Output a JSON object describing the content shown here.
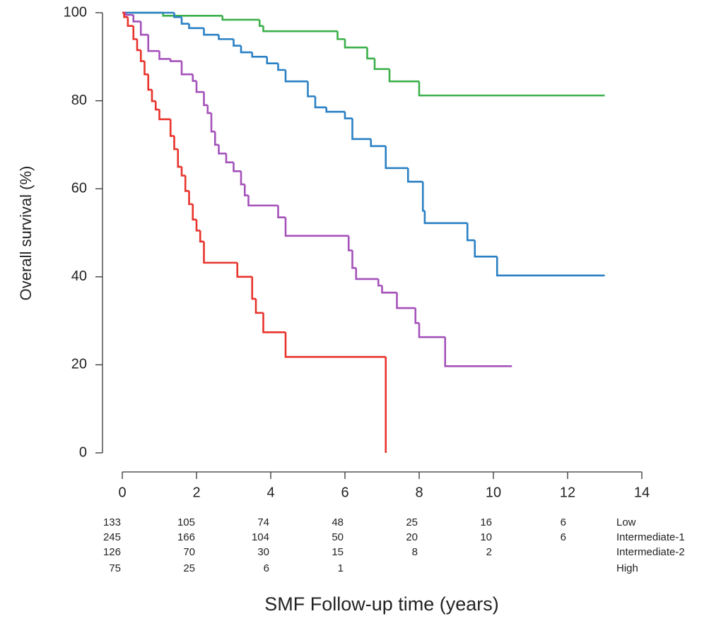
{
  "chart_data": {
    "type": "step",
    "y_label": "Overall survival (%)",
    "x_label": "SMF Follow-up time (years)",
    "xlim": [
      0,
      14
    ],
    "xticks": [
      0,
      2,
      4,
      6,
      8,
      10,
      12,
      14
    ],
    "ylim": [
      0,
      100
    ],
    "yticks": [
      0,
      20,
      40,
      60,
      80,
      100
    ],
    "series": [
      {
        "name": "Low",
        "color": "#3bb04a",
        "x": [
          0,
          1.1,
          2.7,
          3.7,
          3.8,
          5.8,
          6.0,
          6.6,
          6.8,
          7.2,
          8.0,
          13
        ],
        "values": [
          100,
          99.3,
          98.4,
          97,
          95.8,
          94,
          92.1,
          89.6,
          87.2,
          84.4,
          81.2,
          81.2
        ],
        "at_risk": [
          133,
          105,
          74,
          48,
          25,
          16,
          6
        ]
      },
      {
        "name": "Intermediate-1",
        "color": "#2a80c4",
        "x": [
          0,
          1.4,
          1.6,
          1.8,
          2.2,
          2.6,
          3.0,
          3.2,
          3.5,
          3.9,
          4.2,
          4.4,
          5.0,
          5.2,
          5.5,
          6.0,
          6.2,
          6.7,
          7.1,
          7.7,
          8.1,
          8.15,
          9.3,
          9.5,
          10.1,
          13
        ],
        "values": [
          100,
          99,
          97.5,
          96.5,
          95,
          94,
          92.5,
          91,
          90,
          88.5,
          87,
          84.4,
          81,
          78.5,
          77.5,
          76,
          71.3,
          69.7,
          64.7,
          61.6,
          55,
          52.2,
          48.3,
          44.6,
          40.3,
          40.3
        ],
        "at_risk": [
          245,
          166,
          104,
          50,
          20,
          10,
          6
        ]
      },
      {
        "name": "Intermediate-2",
        "color": "#a452ba",
        "x": [
          0,
          0.1,
          0.3,
          0.5,
          0.7,
          1.0,
          1.3,
          1.6,
          1.9,
          2.0,
          2.2,
          2.3,
          2.4,
          2.5,
          2.6,
          2.8,
          3.0,
          3.2,
          3.3,
          3.4,
          4.2,
          4.4,
          6.1,
          6.2,
          6.3,
          6.9,
          7.0,
          7.4,
          7.9,
          8.0,
          8.7,
          10.5
        ],
        "values": [
          100,
          99.5,
          98,
          95,
          91.3,
          89.5,
          89,
          86,
          84.5,
          82,
          79,
          77.2,
          73,
          70,
          68,
          66,
          64,
          61,
          58.5,
          56.2,
          53.5,
          49.3,
          46,
          42,
          39.5,
          38,
          36.4,
          32.9,
          29.5,
          26.3,
          19.7,
          19.7
        ],
        "at_risk": [
          126,
          70,
          30,
          15,
          8,
          2,
          null
        ]
      },
      {
        "name": "High",
        "color": "#e8332c",
        "x": [
          0,
          0.05,
          0.15,
          0.3,
          0.4,
          0.5,
          0.6,
          0.7,
          0.8,
          0.9,
          1.0,
          1.3,
          1.4,
          1.5,
          1.6,
          1.7,
          1.8,
          1.9,
          2.0,
          2.1,
          2.2,
          3.1,
          3.5,
          3.6,
          3.8,
          4.4,
          7.1
        ],
        "values": [
          100,
          99,
          97,
          94,
          91.5,
          89,
          86,
          82.5,
          79.9,
          78,
          75.8,
          72,
          69,
          65,
          63,
          59.5,
          56.5,
          53,
          50.5,
          48,
          43.2,
          40,
          35,
          31.8,
          27.4,
          21.8,
          0
        ],
        "at_risk": [
          75,
          25,
          6,
          1,
          null,
          null,
          null
        ]
      }
    ]
  }
}
